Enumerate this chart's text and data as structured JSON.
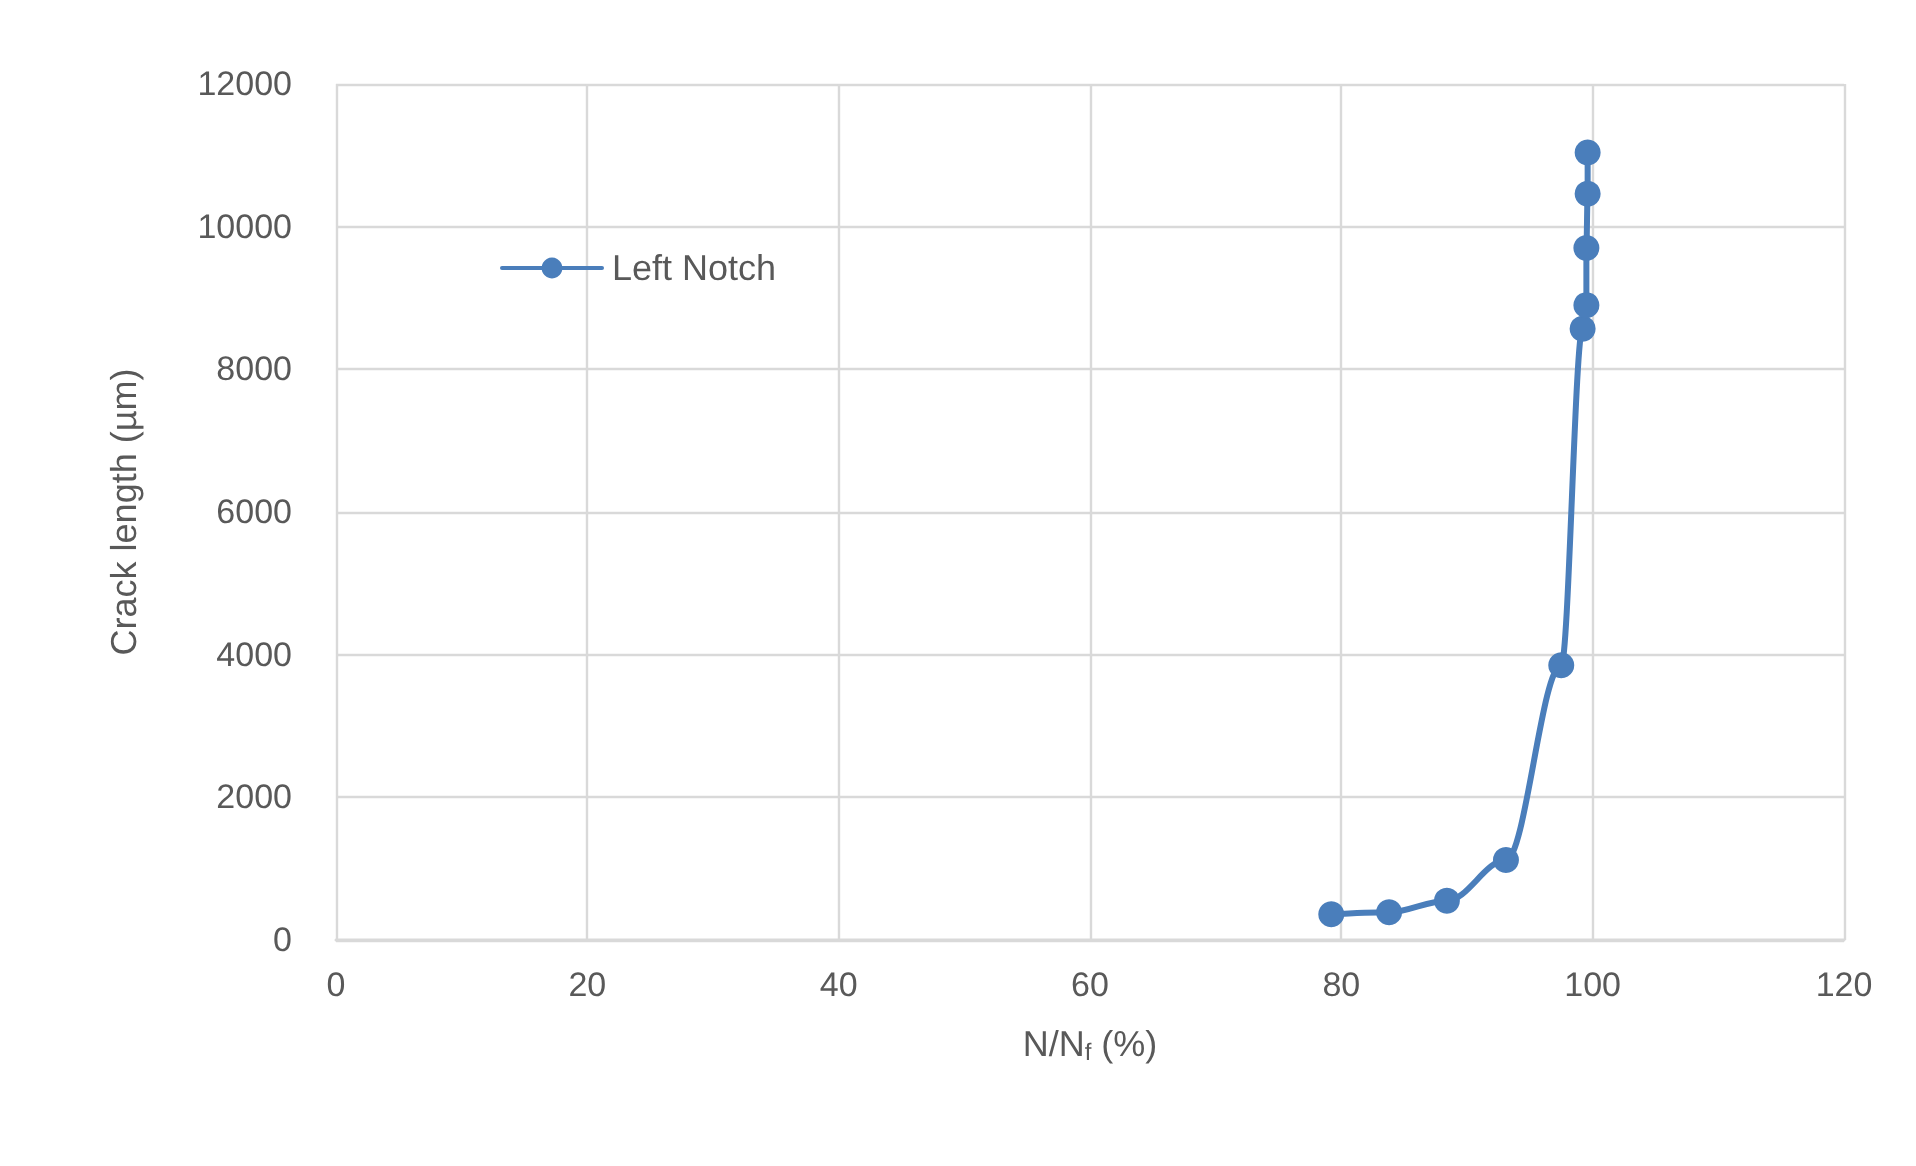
{
  "chart_data": {
    "type": "line",
    "xlabel": "N/N$_{f}$ (%)",
    "ylabel": "Crack length (µm)",
    "series": [
      {
        "name": "Left Notch",
        "color": "#4a7ebb",
        "x": [
          79.2,
          83.8,
          88.4,
          93.1,
          97.5,
          99.2,
          99.5,
          99.5,
          99.6,
          99.6
        ],
        "values": [
          360,
          390,
          550,
          1120,
          3850,
          8570,
          8900,
          9700,
          10460,
          11040
        ]
      }
    ],
    "xlim": [
      0,
      120
    ],
    "xticks": [
      0,
      20,
      40,
      60,
      80,
      100,
      120
    ],
    "ylim": [
      0,
      12000
    ],
    "yticks": [
      0,
      2000,
      4000,
      6000,
      8000,
      10000,
      12000
    ],
    "grid": true,
    "legend": "top left",
    "marker": "circle",
    "line_style": "solid"
  }
}
